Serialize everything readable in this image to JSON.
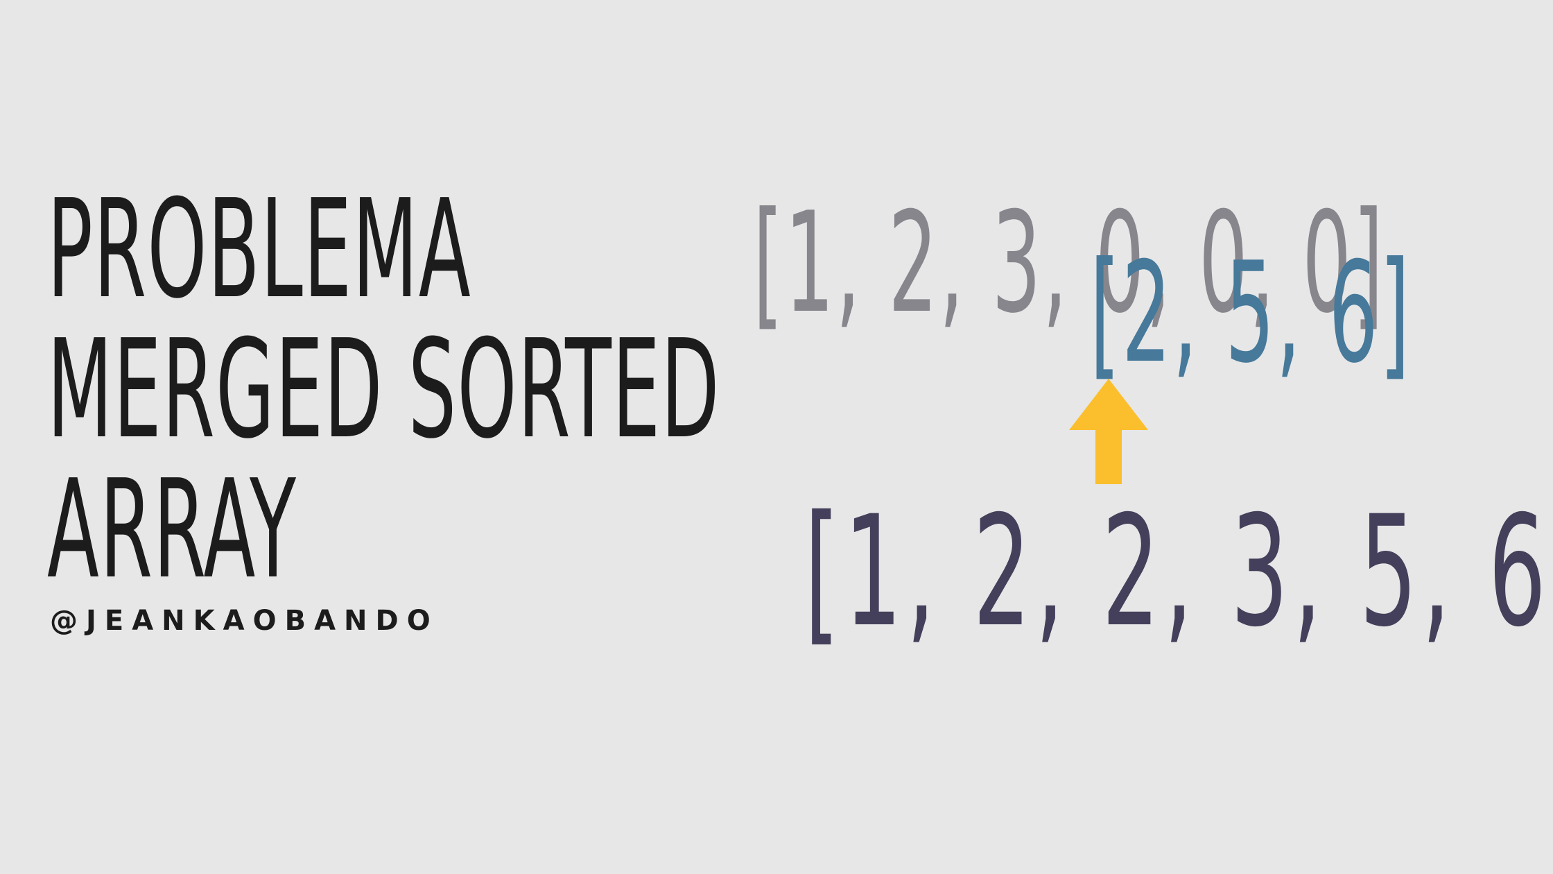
{
  "slide": {
    "title_lines": [
      "PROBLEMA",
      "MERGED SORTED",
      "ARRAY"
    ],
    "handle": "@JEANKAOBANDO"
  },
  "arrays": {
    "nums1": "[1, 2, 3, 0, 0, 0]",
    "nums2": "[2, 5, 6]",
    "result": "[1, 2, 2, 3, 5, 6]"
  },
  "colors": {
    "background": "#e7e7e7",
    "title_text": "#1c1c1c",
    "nums1_text": "#88868d",
    "nums2_text": "#46799a",
    "result_text": "#443f5a",
    "arrow": "#fbbf2d"
  },
  "icons": {
    "arrow": "arrow-up-icon"
  }
}
